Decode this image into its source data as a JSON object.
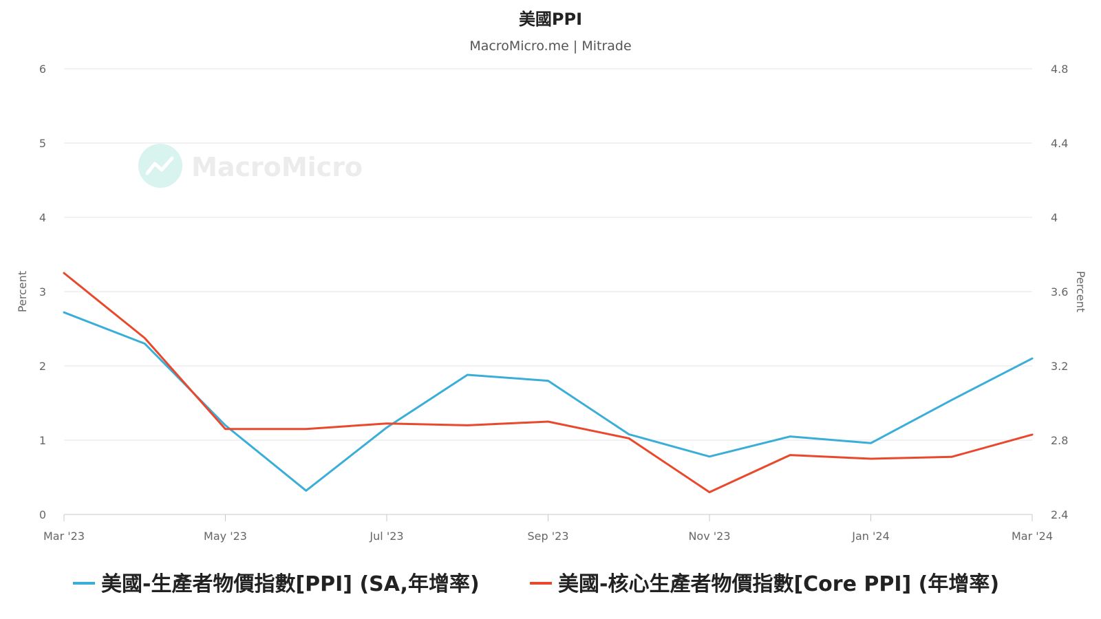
{
  "watermark": "MacroMicro",
  "chart_data": {
    "type": "line",
    "title": "美國PPI",
    "subtitle": "MacroMicro.me | Mitrade",
    "x": [
      "Mar '23",
      "Apr '23",
      "May '23",
      "Jun '23",
      "Jul '23",
      "Aug '23",
      "Sep '23",
      "Oct '23",
      "Nov '23",
      "Dec '23",
      "Jan '24",
      "Feb '24",
      "Mar '24"
    ],
    "x_tick_labels": [
      "Mar '23",
      "May '23",
      "Jul '23",
      "Sep '23",
      "Nov '23",
      "Jan '24",
      "Mar '24"
    ],
    "y_left": {
      "label": "Percent",
      "range": [
        0,
        6
      ],
      "ticks": [
        "0",
        "1",
        "2",
        "3",
        "4",
        "5",
        "6"
      ]
    },
    "y_right": {
      "label": "Percent",
      "range": [
        2.4,
        4.8
      ],
      "ticks": [
        "2.4",
        "2.8",
        "3.2",
        "3.6",
        "4",
        "4.4",
        "4.8"
      ]
    },
    "grid": true,
    "legend_position": "bottom",
    "series": [
      {
        "name": "美國-生產者物價指數[PPI] (SA,年增率)",
        "axis": "left",
        "color": "#3aaed8",
        "values": [
          2.72,
          2.3,
          1.2,
          0.32,
          1.17,
          1.88,
          1.8,
          1.08,
          0.78,
          1.05,
          0.96,
          1.54,
          2.1
        ]
      },
      {
        "name": "美國-核心生產者物價指數[Core PPI] (年增率)",
        "axis": "right",
        "color": "#e8482c",
        "values": [
          3.7,
          3.35,
          2.86,
          2.86,
          2.89,
          2.88,
          2.9,
          2.81,
          2.52,
          2.72,
          2.7,
          2.71,
          2.83
        ]
      }
    ]
  }
}
